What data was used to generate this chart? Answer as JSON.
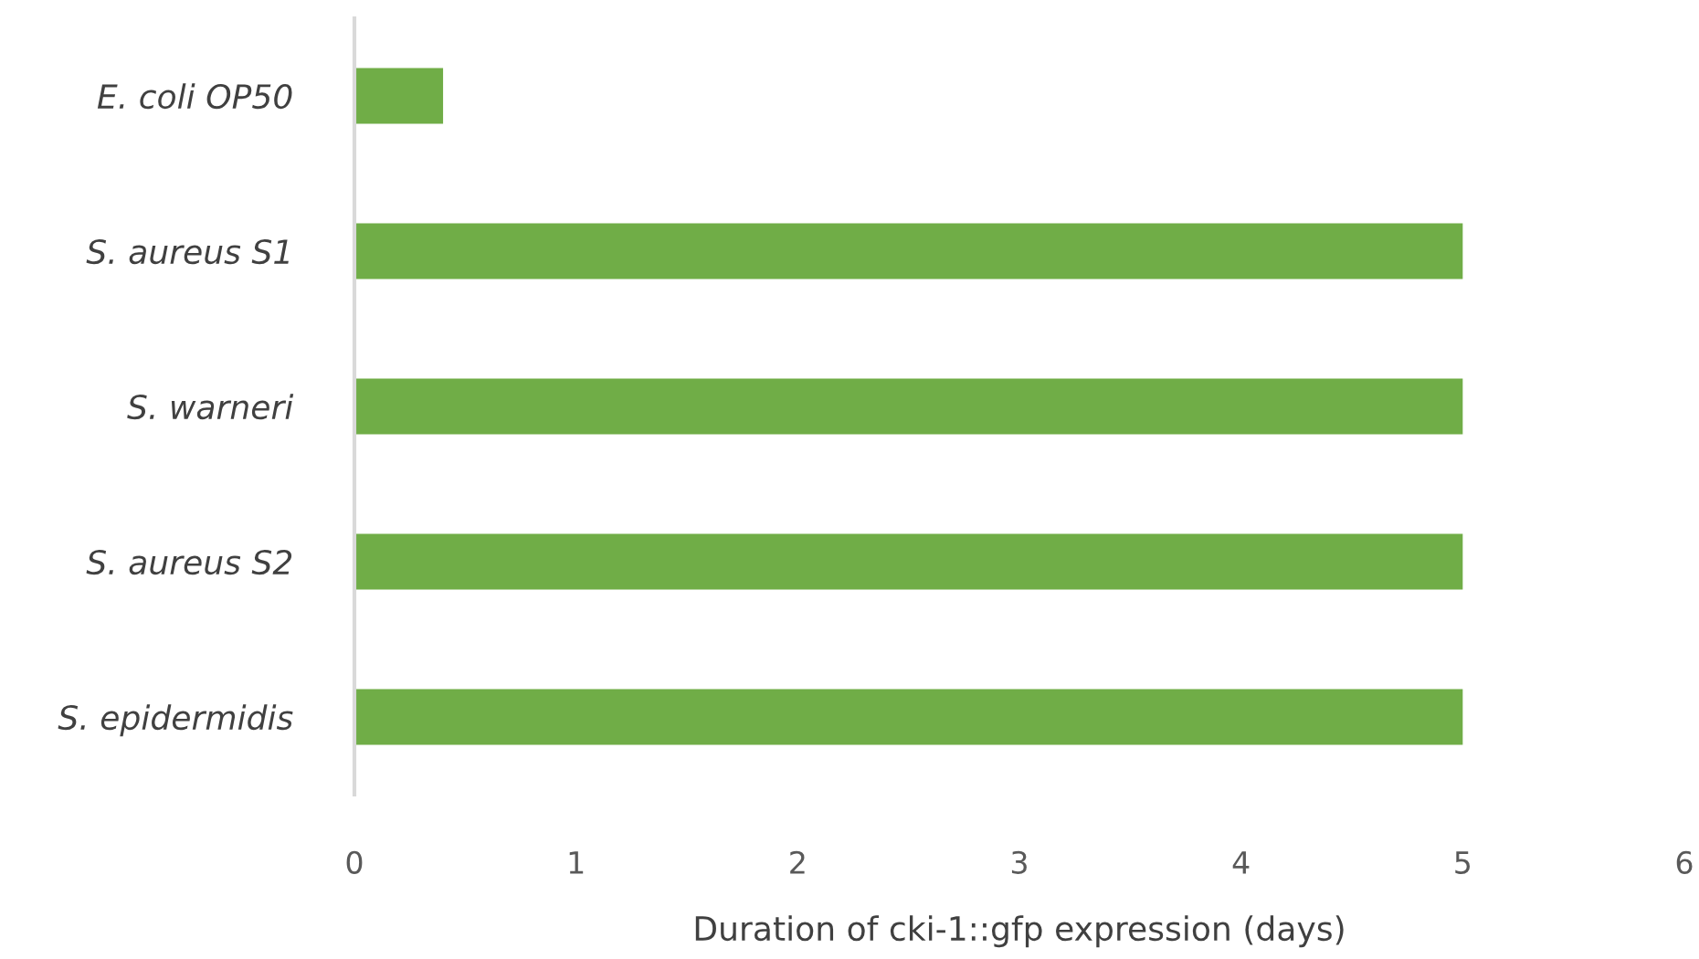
{
  "chart_data": {
    "type": "bar",
    "orientation": "horizontal",
    "categories": [
      "E. coli OP50",
      "S. aureus S1",
      "S. warneri",
      "S. aureus S2",
      "S. epidermidis"
    ],
    "values": [
      0.4,
      5,
      5,
      5,
      5
    ],
    "color": "#70ad47",
    "xlabel": "Duration of cki-1::gfp expression (days)",
    "xlim": [
      0,
      6
    ],
    "xticks": [
      0,
      1,
      2,
      3,
      4,
      5,
      6
    ],
    "grid": false,
    "legend": false
  }
}
